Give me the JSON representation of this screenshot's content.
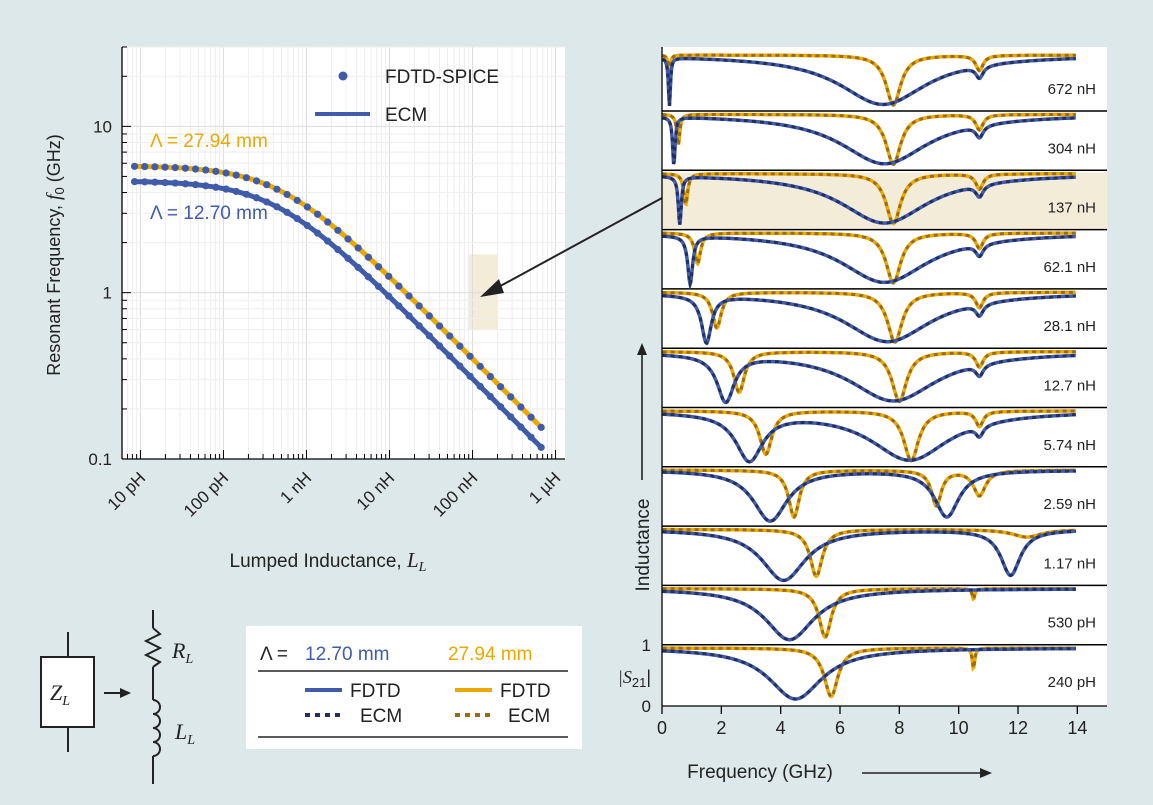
{
  "colors": {
    "blue": "#3f5ba9",
    "orange": "#eaa800",
    "ecm_blue": "#232f5e",
    "ecm_orange": "#9a6b12",
    "highlight": "#f3ecd8",
    "background": "#dde8ea"
  },
  "left_plot": {
    "ylabel_main": "Resonant Frequency, ",
    "ylabel_var": "f",
    "ylabel_sub": "0",
    "ylabel_unit": " (GHz)",
    "xlabel_main": "Lumped Inductance, ",
    "xlabel_var": "L",
    "xlabel_sub": "L",
    "legend_points": "FDTD-SPICE",
    "legend_line": "ECM",
    "label_orange": "Λ = 27.94 mm",
    "label_blue": "Λ = 12.70 mm"
  },
  "chart_data": [
    {
      "type": "scatter",
      "x_scale": "log",
      "y_scale": "log",
      "xlabel": "Lumped Inductance, L_L",
      "ylabel": "Resonant Frequency, f_0 (GHz)",
      "x_ticks": [
        {
          "value": 1e-11,
          "label": "10 pH"
        },
        {
          "value": 1e-10,
          "label": "100 pH"
        },
        {
          "value": 1e-09,
          "label": "1 nH"
        },
        {
          "value": 1e-08,
          "label": "10 nH"
        },
        {
          "value": 1e-07,
          "label": "100 nH"
        },
        {
          "value": 1e-06,
          "label": "1 µH"
        }
      ],
      "y_ticks": [
        {
          "value": 0.1,
          "label": "0.1"
        },
        {
          "value": 1,
          "label": "1"
        },
        {
          "value": 10,
          "label": "10"
        }
      ],
      "xlim": [
        6e-12,
        1.3e-06
      ],
      "ylim": [
        0.1,
        30
      ],
      "grid": true,
      "legend": "top-right",
      "highlight_x": 1.37e-07,
      "series": [
        {
          "name": "Λ = 27.94 mm",
          "color": "#eaa800",
          "f_low_ghz": 5.8,
          "inductance_scale_h": 4.8e-10
        },
        {
          "name": "Λ = 12.70 mm",
          "color": "#3f5ba9",
          "f_low_ghz": 4.7,
          "inductance_scale_h": 4.2e-10
        }
      ]
    },
    {
      "type": "line",
      "xlabel": "Frequency (GHz)",
      "ylabel": "Inductance",
      "xlim": [
        0,
        15
      ],
      "x_ticks": [
        0,
        2,
        4,
        6,
        8,
        10,
        12,
        14
      ],
      "strip_y_ticks": [
        "0",
        "1"
      ],
      "strip_ylabel": "|S21|",
      "highlight_row": 2,
      "rows": [
        {
          "label": "672 nH",
          "blue": [
            {
              "f": 0.25,
              "w": 0.04,
              "d": 1.0
            },
            {
              "f": 7.45,
              "w": 1.8,
              "d": 0.97
            },
            {
              "f": 10.7,
              "w": 0.15,
              "d": 0.3
            }
          ],
          "orange": [
            {
              "f": 0.25,
              "w": 0.04,
              "d": 0.4
            },
            {
              "f": 7.8,
              "w": 0.3,
              "d": 0.98
            },
            {
              "f": 10.7,
              "w": 0.15,
              "d": 0.3
            }
          ]
        },
        {
          "label": "304 nH",
          "blue": [
            {
              "f": 0.4,
              "w": 0.05,
              "d": 1.0
            },
            {
              "f": 7.5,
              "w": 1.8,
              "d": 0.97
            },
            {
              "f": 10.7,
              "w": 0.15,
              "d": 0.3
            }
          ],
          "orange": [
            {
              "f": 0.55,
              "w": 0.06,
              "d": 0.6
            },
            {
              "f": 7.8,
              "w": 0.3,
              "d": 0.98
            },
            {
              "f": 10.7,
              "w": 0.15,
              "d": 0.3
            }
          ]
        },
        {
          "label": "137 nH",
          "blue": [
            {
              "f": 0.6,
              "w": 0.06,
              "d": 1.0
            },
            {
              "f": 7.5,
              "w": 1.8,
              "d": 0.97
            },
            {
              "f": 10.7,
              "w": 0.15,
              "d": 0.3
            }
          ],
          "orange": [
            {
              "f": 0.8,
              "w": 0.08,
              "d": 0.6
            },
            {
              "f": 7.8,
              "w": 0.3,
              "d": 0.98
            },
            {
              "f": 10.7,
              "w": 0.15,
              "d": 0.3
            }
          ]
        },
        {
          "label": "62.1 nH",
          "blue": [
            {
              "f": 0.95,
              "w": 0.1,
              "d": 1.0
            },
            {
              "f": 7.5,
              "w": 1.8,
              "d": 0.97
            },
            {
              "f": 10.7,
              "w": 0.15,
              "d": 0.3
            }
          ],
          "orange": [
            {
              "f": 1.2,
              "w": 0.12,
              "d": 0.6
            },
            {
              "f": 7.8,
              "w": 0.3,
              "d": 0.98
            },
            {
              "f": 10.7,
              "w": 0.15,
              "d": 0.3
            }
          ]
        },
        {
          "label": "28.1 nH",
          "blue": [
            {
              "f": 1.5,
              "w": 0.2,
              "d": 1.0
            },
            {
              "f": 7.6,
              "w": 1.8,
              "d": 0.97
            },
            {
              "f": 10.7,
              "w": 0.15,
              "d": 0.3
            }
          ],
          "orange": [
            {
              "f": 1.85,
              "w": 0.18,
              "d": 0.7
            },
            {
              "f": 7.85,
              "w": 0.3,
              "d": 0.98
            },
            {
              "f": 10.7,
              "w": 0.15,
              "d": 0.3
            }
          ]
        },
        {
          "label": "12.7 nH",
          "blue": [
            {
              "f": 2.15,
              "w": 0.35,
              "d": 1.0
            },
            {
              "f": 7.8,
              "w": 1.8,
              "d": 0.97
            },
            {
              "f": 10.7,
              "w": 0.15,
              "d": 0.3
            }
          ],
          "orange": [
            {
              "f": 2.6,
              "w": 0.22,
              "d": 0.8
            },
            {
              "f": 8.0,
              "w": 0.3,
              "d": 0.98
            },
            {
              "f": 10.7,
              "w": 0.15,
              "d": 0.3
            }
          ]
        },
        {
          "label": "5.74 nH",
          "blue": [
            {
              "f": 2.95,
              "w": 0.55,
              "d": 1.0
            },
            {
              "f": 8.35,
              "w": 1.6,
              "d": 0.97
            },
            {
              "f": 10.7,
              "w": 0.15,
              "d": 0.3
            }
          ],
          "orange": [
            {
              "f": 3.5,
              "w": 0.25,
              "d": 0.85
            },
            {
              "f": 8.4,
              "w": 0.3,
              "d": 0.98
            },
            {
              "f": 10.7,
              "w": 0.15,
              "d": 0.3
            }
          ]
        },
        {
          "label": "2.59 nH",
          "blue": [
            {
              "f": 3.65,
              "w": 0.7,
              "d": 1.0
            },
            {
              "f": 9.6,
              "w": 0.5,
              "d": 0.92
            }
          ],
          "orange": [
            {
              "f": 4.45,
              "w": 0.22,
              "d": 0.92
            },
            {
              "f": 9.25,
              "w": 0.2,
              "d": 0.7
            },
            {
              "f": 10.7,
              "w": 0.25,
              "d": 0.5
            }
          ]
        },
        {
          "label": "1.17 nH",
          "blue": [
            {
              "f": 4.1,
              "w": 0.9,
              "d": 1.0
            },
            {
              "f": 11.75,
              "w": 0.4,
              "d": 0.9
            }
          ],
          "orange": [
            {
              "f": 5.2,
              "w": 0.25,
              "d": 0.92
            },
            {
              "f": 12.3,
              "w": 0.6,
              "d": 0.15
            }
          ]
        },
        {
          "label": "530 pH",
          "blue": [
            {
              "f": 4.3,
              "w": 1.0,
              "d": 1.0
            }
          ],
          "orange": [
            {
              "f": 5.5,
              "w": 0.25,
              "d": 0.95
            },
            {
              "f": 10.5,
              "w": 0.05,
              "d": 0.2
            }
          ]
        },
        {
          "label": "240 pH",
          "blue": [
            {
              "f": 4.5,
              "w": 1.1,
              "d": 1.0
            }
          ],
          "orange": [
            {
              "f": 5.7,
              "w": 0.28,
              "d": 0.95
            },
            {
              "f": 10.5,
              "w": 0.05,
              "d": 0.4
            }
          ]
        }
      ]
    }
  ],
  "strip_axis": {
    "xlabel": "Frequency (GHz)",
    "ylabel": "Inductance",
    "s21_label": "|S",
    "s21_sub": "21",
    "s21_end": "|",
    "tick_1": "1",
    "tick_0": "0"
  },
  "circuit": {
    "z_var": "Z",
    "z_sub": "L",
    "r_var": "R",
    "r_sub": "L",
    "l_var": "L",
    "l_sub": "L"
  },
  "legend_table": {
    "lambda_prefix": "Λ = ",
    "col_blue": "12.70 mm",
    "col_orange": "27.94 mm",
    "fdtd": "FDTD",
    "ecm": "ECM"
  }
}
